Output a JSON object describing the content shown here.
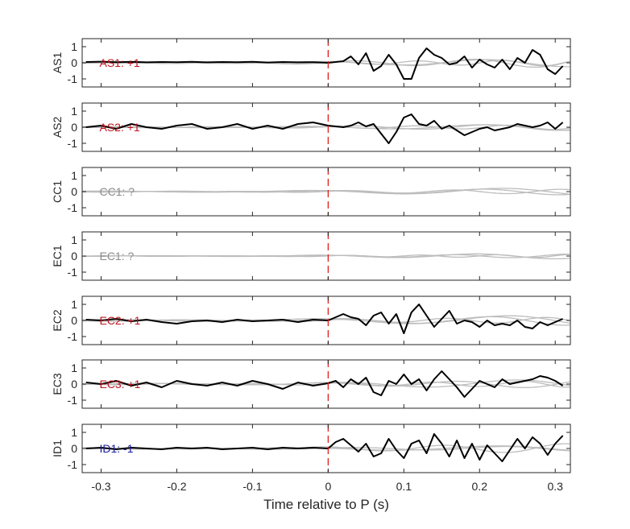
{
  "chart_data": {
    "type": "line",
    "xlabel": "Time relative to P (s)",
    "xlim": [
      -0.325,
      0.32
    ],
    "ylim": [
      -1.5,
      1.5
    ],
    "x_ticks": [
      -0.3,
      -0.2,
      -0.1,
      0,
      0.1,
      0.2,
      0.3
    ],
    "x_tick_labels": [
      "-0.3",
      "-0.2",
      "-0.1",
      "0",
      "0.1",
      "0.2",
      "0.3"
    ],
    "y_ticks": [
      -1,
      0,
      1
    ],
    "y_tick_labels": [
      "-1",
      "0",
      "1"
    ],
    "grid": false,
    "marker_line": {
      "x": 0,
      "color": "#e0201b",
      "style": "dashed"
    },
    "colors": {
      "main": "#000000",
      "others": "#bdbdbd",
      "positive": "#c0141e",
      "negative": "#1a1aa0",
      "unknown": "#8c8c8c"
    },
    "panels": [
      {
        "station": "AS1",
        "annotation": "AS1: +1",
        "polarity": "positive",
        "trace": {
          "x": [
            -0.32,
            -0.3,
            -0.28,
            -0.26,
            -0.24,
            -0.22,
            -0.2,
            -0.18,
            -0.16,
            -0.14,
            -0.12,
            -0.1,
            -0.08,
            -0.06,
            -0.04,
            -0.02,
            0.0,
            0.01,
            0.02,
            0.03,
            0.04,
            0.05,
            0.06,
            0.07,
            0.08,
            0.09,
            0.1,
            0.11,
            0.12,
            0.13,
            0.14,
            0.15,
            0.16,
            0.17,
            0.18,
            0.19,
            0.2,
            0.21,
            0.22,
            0.23,
            0.24,
            0.25,
            0.26,
            0.27,
            0.28,
            0.29,
            0.3,
            0.31
          ],
          "y": [
            0.05,
            0.07,
            0.04,
            0.06,
            0.03,
            0.05,
            0.04,
            0.06,
            0.03,
            0.05,
            0.04,
            0.06,
            0.02,
            0.05,
            0.03,
            0.04,
            0.0,
            0.05,
            0.1,
            0.4,
            -0.1,
            0.6,
            -0.5,
            -0.2,
            0.5,
            -0.1,
            -1.0,
            -1.0,
            0.3,
            0.9,
            0.5,
            0.3,
            -0.1,
            0.0,
            0.4,
            -0.3,
            0.2,
            -0.1,
            -0.3,
            0.2,
            -0.4,
            0.3,
            0.0,
            0.8,
            0.5,
            -0.4,
            -0.7,
            -0.2
          ]
        },
        "others": [
          {
            "amp": 0.3,
            "period": 0.16,
            "phase": 0.3
          },
          {
            "amp": 0.2,
            "period": 0.11,
            "phase": 1.1
          },
          {
            "amp": 0.25,
            "period": 0.22,
            "phase": 2.0
          }
        ]
      },
      {
        "station": "AS2",
        "annotation": "AS2: +1",
        "polarity": "positive",
        "trace": {
          "x": [
            -0.32,
            -0.3,
            -0.28,
            -0.26,
            -0.24,
            -0.22,
            -0.2,
            -0.18,
            -0.16,
            -0.14,
            -0.12,
            -0.1,
            -0.08,
            -0.06,
            -0.04,
            -0.02,
            0.0,
            0.01,
            0.02,
            0.03,
            0.04,
            0.05,
            0.06,
            0.07,
            0.08,
            0.09,
            0.1,
            0.11,
            0.12,
            0.13,
            0.14,
            0.15,
            0.16,
            0.17,
            0.18,
            0.19,
            0.2,
            0.21,
            0.22,
            0.23,
            0.24,
            0.25,
            0.26,
            0.27,
            0.28,
            0.29,
            0.3,
            0.31
          ],
          "y": [
            0.0,
            0.1,
            -0.1,
            0.2,
            0.0,
            -0.1,
            0.1,
            0.2,
            -0.1,
            0.0,
            0.2,
            -0.1,
            0.1,
            -0.1,
            0.2,
            0.3,
            0.1,
            0.05,
            0.0,
            0.1,
            0.3,
            0.05,
            0.2,
            -0.4,
            -1.0,
            -0.3,
            0.6,
            0.8,
            0.2,
            0.1,
            0.4,
            -0.1,
            0.1,
            -0.2,
            -0.5,
            -0.3,
            -0.1,
            0.0,
            -0.2,
            -0.1,
            0.0,
            0.2,
            0.1,
            0.0,
            0.1,
            0.3,
            -0.1,
            0.3
          ]
        },
        "others": [
          {
            "amp": 0.2,
            "period": 0.18,
            "phase": 0.5
          },
          {
            "amp": 0.15,
            "period": 0.12,
            "phase": 1.8
          },
          {
            "amp": 0.2,
            "period": 0.24,
            "phase": 2.6
          }
        ]
      },
      {
        "station": "CC1",
        "annotation": "CC1: ?",
        "polarity": "unknown",
        "trace": null,
        "others": [
          {
            "amp": 0.15,
            "period": 0.14,
            "phase": 0.4
          },
          {
            "amp": 0.2,
            "period": 0.2,
            "phase": 1.5
          },
          {
            "amp": 0.25,
            "period": 0.26,
            "phase": 2.4
          }
        ]
      },
      {
        "station": "EC1",
        "annotation": "EC1: ?",
        "polarity": "unknown",
        "trace": null,
        "others": [
          {
            "amp": 0.12,
            "period": 0.15,
            "phase": 0.9
          },
          {
            "amp": 0.18,
            "period": 0.21,
            "phase": 2.1
          },
          {
            "amp": 0.1,
            "period": 0.1,
            "phase": 0.2
          }
        ]
      },
      {
        "station": "EC2",
        "annotation": "EC2: +1",
        "polarity": "positive",
        "trace": {
          "x": [
            -0.32,
            -0.3,
            -0.28,
            -0.26,
            -0.24,
            -0.22,
            -0.2,
            -0.18,
            -0.16,
            -0.14,
            -0.12,
            -0.1,
            -0.08,
            -0.06,
            -0.04,
            -0.02,
            0.0,
            0.01,
            0.02,
            0.03,
            0.04,
            0.05,
            0.06,
            0.07,
            0.08,
            0.09,
            0.1,
            0.11,
            0.12,
            0.13,
            0.14,
            0.15,
            0.16,
            0.17,
            0.18,
            0.19,
            0.2,
            0.21,
            0.22,
            0.23,
            0.24,
            0.25,
            0.26,
            0.27,
            0.28,
            0.29,
            0.3,
            0.31
          ],
          "y": [
            0.05,
            0.0,
            0.1,
            -0.05,
            0.05,
            -0.1,
            -0.2,
            -0.05,
            0.0,
            -0.1,
            0.05,
            -0.05,
            0.0,
            0.05,
            -0.1,
            0.05,
            0.0,
            0.2,
            0.4,
            0.2,
            0.1,
            -0.3,
            0.3,
            0.5,
            -0.2,
            0.4,
            -0.8,
            0.5,
            1.0,
            0.3,
            -0.4,
            0.1,
            0.6,
            -0.2,
            0.0,
            -0.1,
            -0.4,
            0.0,
            -0.3,
            -0.2,
            -0.3,
            0.0,
            -0.4,
            -0.5,
            -0.1,
            -0.3,
            -0.1,
            0.1
          ]
        },
        "others": [
          {
            "amp": 0.3,
            "period": 0.2,
            "phase": 1.2
          },
          {
            "amp": 0.2,
            "period": 0.13,
            "phase": 0.3
          },
          {
            "amp": 0.35,
            "period": 0.26,
            "phase": 2.2
          }
        ]
      },
      {
        "station": "EC3",
        "annotation": "EC3: +1",
        "polarity": "positive",
        "trace": {
          "x": [
            -0.32,
            -0.3,
            -0.28,
            -0.26,
            -0.24,
            -0.22,
            -0.2,
            -0.18,
            -0.16,
            -0.14,
            -0.12,
            -0.1,
            -0.08,
            -0.06,
            -0.04,
            -0.02,
            0.0,
            0.01,
            0.02,
            0.03,
            0.04,
            0.05,
            0.06,
            0.07,
            0.08,
            0.09,
            0.1,
            0.11,
            0.12,
            0.13,
            0.14,
            0.15,
            0.16,
            0.17,
            0.18,
            0.19,
            0.2,
            0.21,
            0.22,
            0.23,
            0.24,
            0.25,
            0.26,
            0.27,
            0.28,
            0.29,
            0.3,
            0.31
          ],
          "y": [
            0.1,
            0.0,
            0.2,
            -0.1,
            0.1,
            -0.2,
            0.2,
            0.0,
            -0.1,
            0.1,
            -0.1,
            0.2,
            0.0,
            -0.3,
            0.1,
            -0.1,
            0.05,
            0.2,
            -0.2,
            0.3,
            0.0,
            0.4,
            -0.5,
            -0.7,
            0.2,
            0.0,
            0.6,
            0.0,
            0.3,
            -0.4,
            0.3,
            0.8,
            0.3,
            -0.2,
            -0.8,
            -0.3,
            0.2,
            0.0,
            -0.2,
            0.3,
            0.0,
            0.1,
            0.2,
            0.3,
            0.5,
            0.4,
            0.2,
            -0.1
          ]
        },
        "others": [
          {
            "amp": 0.25,
            "period": 0.18,
            "phase": 2.0
          },
          {
            "amp": 0.2,
            "period": 0.12,
            "phase": 0.7
          },
          {
            "amp": 0.3,
            "period": 0.24,
            "phase": 1.4
          }
        ]
      },
      {
        "station": "ID1",
        "annotation": "ID1: -1",
        "polarity": "negative",
        "trace": {
          "x": [
            -0.32,
            -0.3,
            -0.28,
            -0.26,
            -0.24,
            -0.22,
            -0.2,
            -0.18,
            -0.16,
            -0.14,
            -0.12,
            -0.1,
            -0.08,
            -0.06,
            -0.04,
            -0.02,
            0.0,
            0.01,
            0.02,
            0.03,
            0.04,
            0.05,
            0.06,
            0.07,
            0.08,
            0.09,
            0.1,
            0.11,
            0.12,
            0.13,
            0.14,
            0.15,
            0.16,
            0.17,
            0.18,
            0.19,
            0.2,
            0.21,
            0.22,
            0.23,
            0.24,
            0.25,
            0.26,
            0.27,
            0.28,
            0.29,
            0.3,
            0.31
          ],
          "y": [
            0.0,
            0.05,
            -0.05,
            0.05,
            0.0,
            -0.05,
            0.05,
            0.0,
            0.05,
            -0.05,
            0.0,
            0.05,
            -0.05,
            0.05,
            0.0,
            0.05,
            0.0,
            0.4,
            0.6,
            0.2,
            -0.2,
            0.3,
            -0.5,
            -0.3,
            0.6,
            -0.1,
            -0.6,
            0.3,
            0.5,
            -0.3,
            0.9,
            0.3,
            -0.5,
            0.5,
            -0.6,
            0.3,
            -0.7,
            0.2,
            -0.3,
            -0.8,
            -0.1,
            0.6,
            0.0,
            0.7,
            0.3,
            -0.4,
            0.3,
            0.8
          ]
        },
        "others": [
          {
            "amp": 0.15,
            "period": 0.2,
            "phase": 0.6
          },
          {
            "amp": 0.3,
            "period": 0.16,
            "phase": 1.9
          },
          {
            "amp": 0.2,
            "period": 0.28,
            "phase": 2.9
          }
        ]
      }
    ]
  }
}
